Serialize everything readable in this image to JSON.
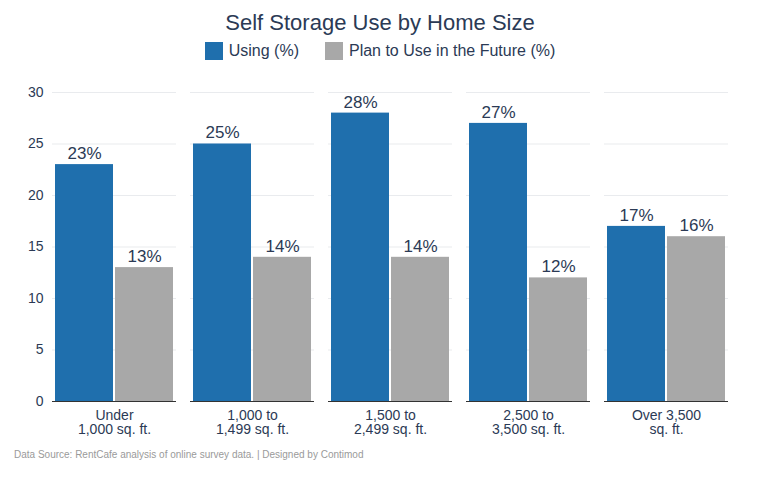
{
  "chart_data": {
    "type": "bar",
    "title": "Self Storage Use by Home Size",
    "caption": "Data Source: RentCafe analysis of online survey data. | Designed by Contimod",
    "categories": [
      "Under\n1,000 sq. ft.",
      "1,000 to\n1,499 sq. ft.",
      "1,500 to\n2,499 sq. ft.",
      "2,500 to\n3,500 sq. ft.",
      "Over 3,500\nsq. ft."
    ],
    "series": [
      {
        "name": "Using (%)",
        "color": "#1f6fad",
        "values": [
          23,
          25,
          28,
          27,
          17
        ],
        "value_labels": [
          "23%",
          "25%",
          "28%",
          "27%",
          "17%"
        ]
      },
      {
        "name": "Plan to Use in the Future (%)",
        "color": "#a8a8a8",
        "values": [
          13,
          14,
          14,
          12,
          16
        ],
        "value_labels": [
          "13%",
          "14%",
          "14%",
          "12%",
          "16%"
        ]
      }
    ],
    "ylim": [
      0,
      30
    ],
    "yticks": [
      0,
      5,
      10,
      15,
      20,
      25,
      30
    ],
    "grid": true,
    "legend": "top",
    "data_labels": true
  }
}
